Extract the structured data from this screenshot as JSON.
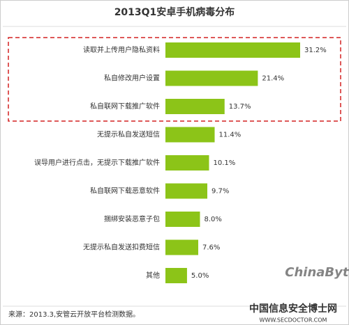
{
  "chart_data": {
    "type": "bar",
    "orientation": "horizontal",
    "title": "2013Q1安卓手机病毒分布",
    "categories": [
      "读取并上传用户隐私资料",
      "私自修改用户设置",
      "私自联网下载推广软件",
      "无提示私自发送短信",
      "误导用户进行点击，无提示下载推广软件",
      "私自联网下载恶意软件",
      "捆绑安装恶意子包",
      "无提示私自发送扣费短信",
      "其他"
    ],
    "values": [
      31.2,
      21.4,
      13.7,
      11.4,
      10.1,
      9.7,
      8.0,
      7.6,
      5.0
    ],
    "value_labels": [
      "31.2%",
      "21.4%",
      "13.7%",
      "11.4%",
      "10.1%",
      "9.7%",
      "8.0%",
      "7.6%",
      "5.0%"
    ],
    "color": "#8cc418",
    "source": "来源：2013.3,安管云开放平台检测数据。",
    "watermarks": [
      "ChinaByte",
      "中国信息安全博士网",
      "WWW.SECDOCTOR.COM"
    ]
  }
}
